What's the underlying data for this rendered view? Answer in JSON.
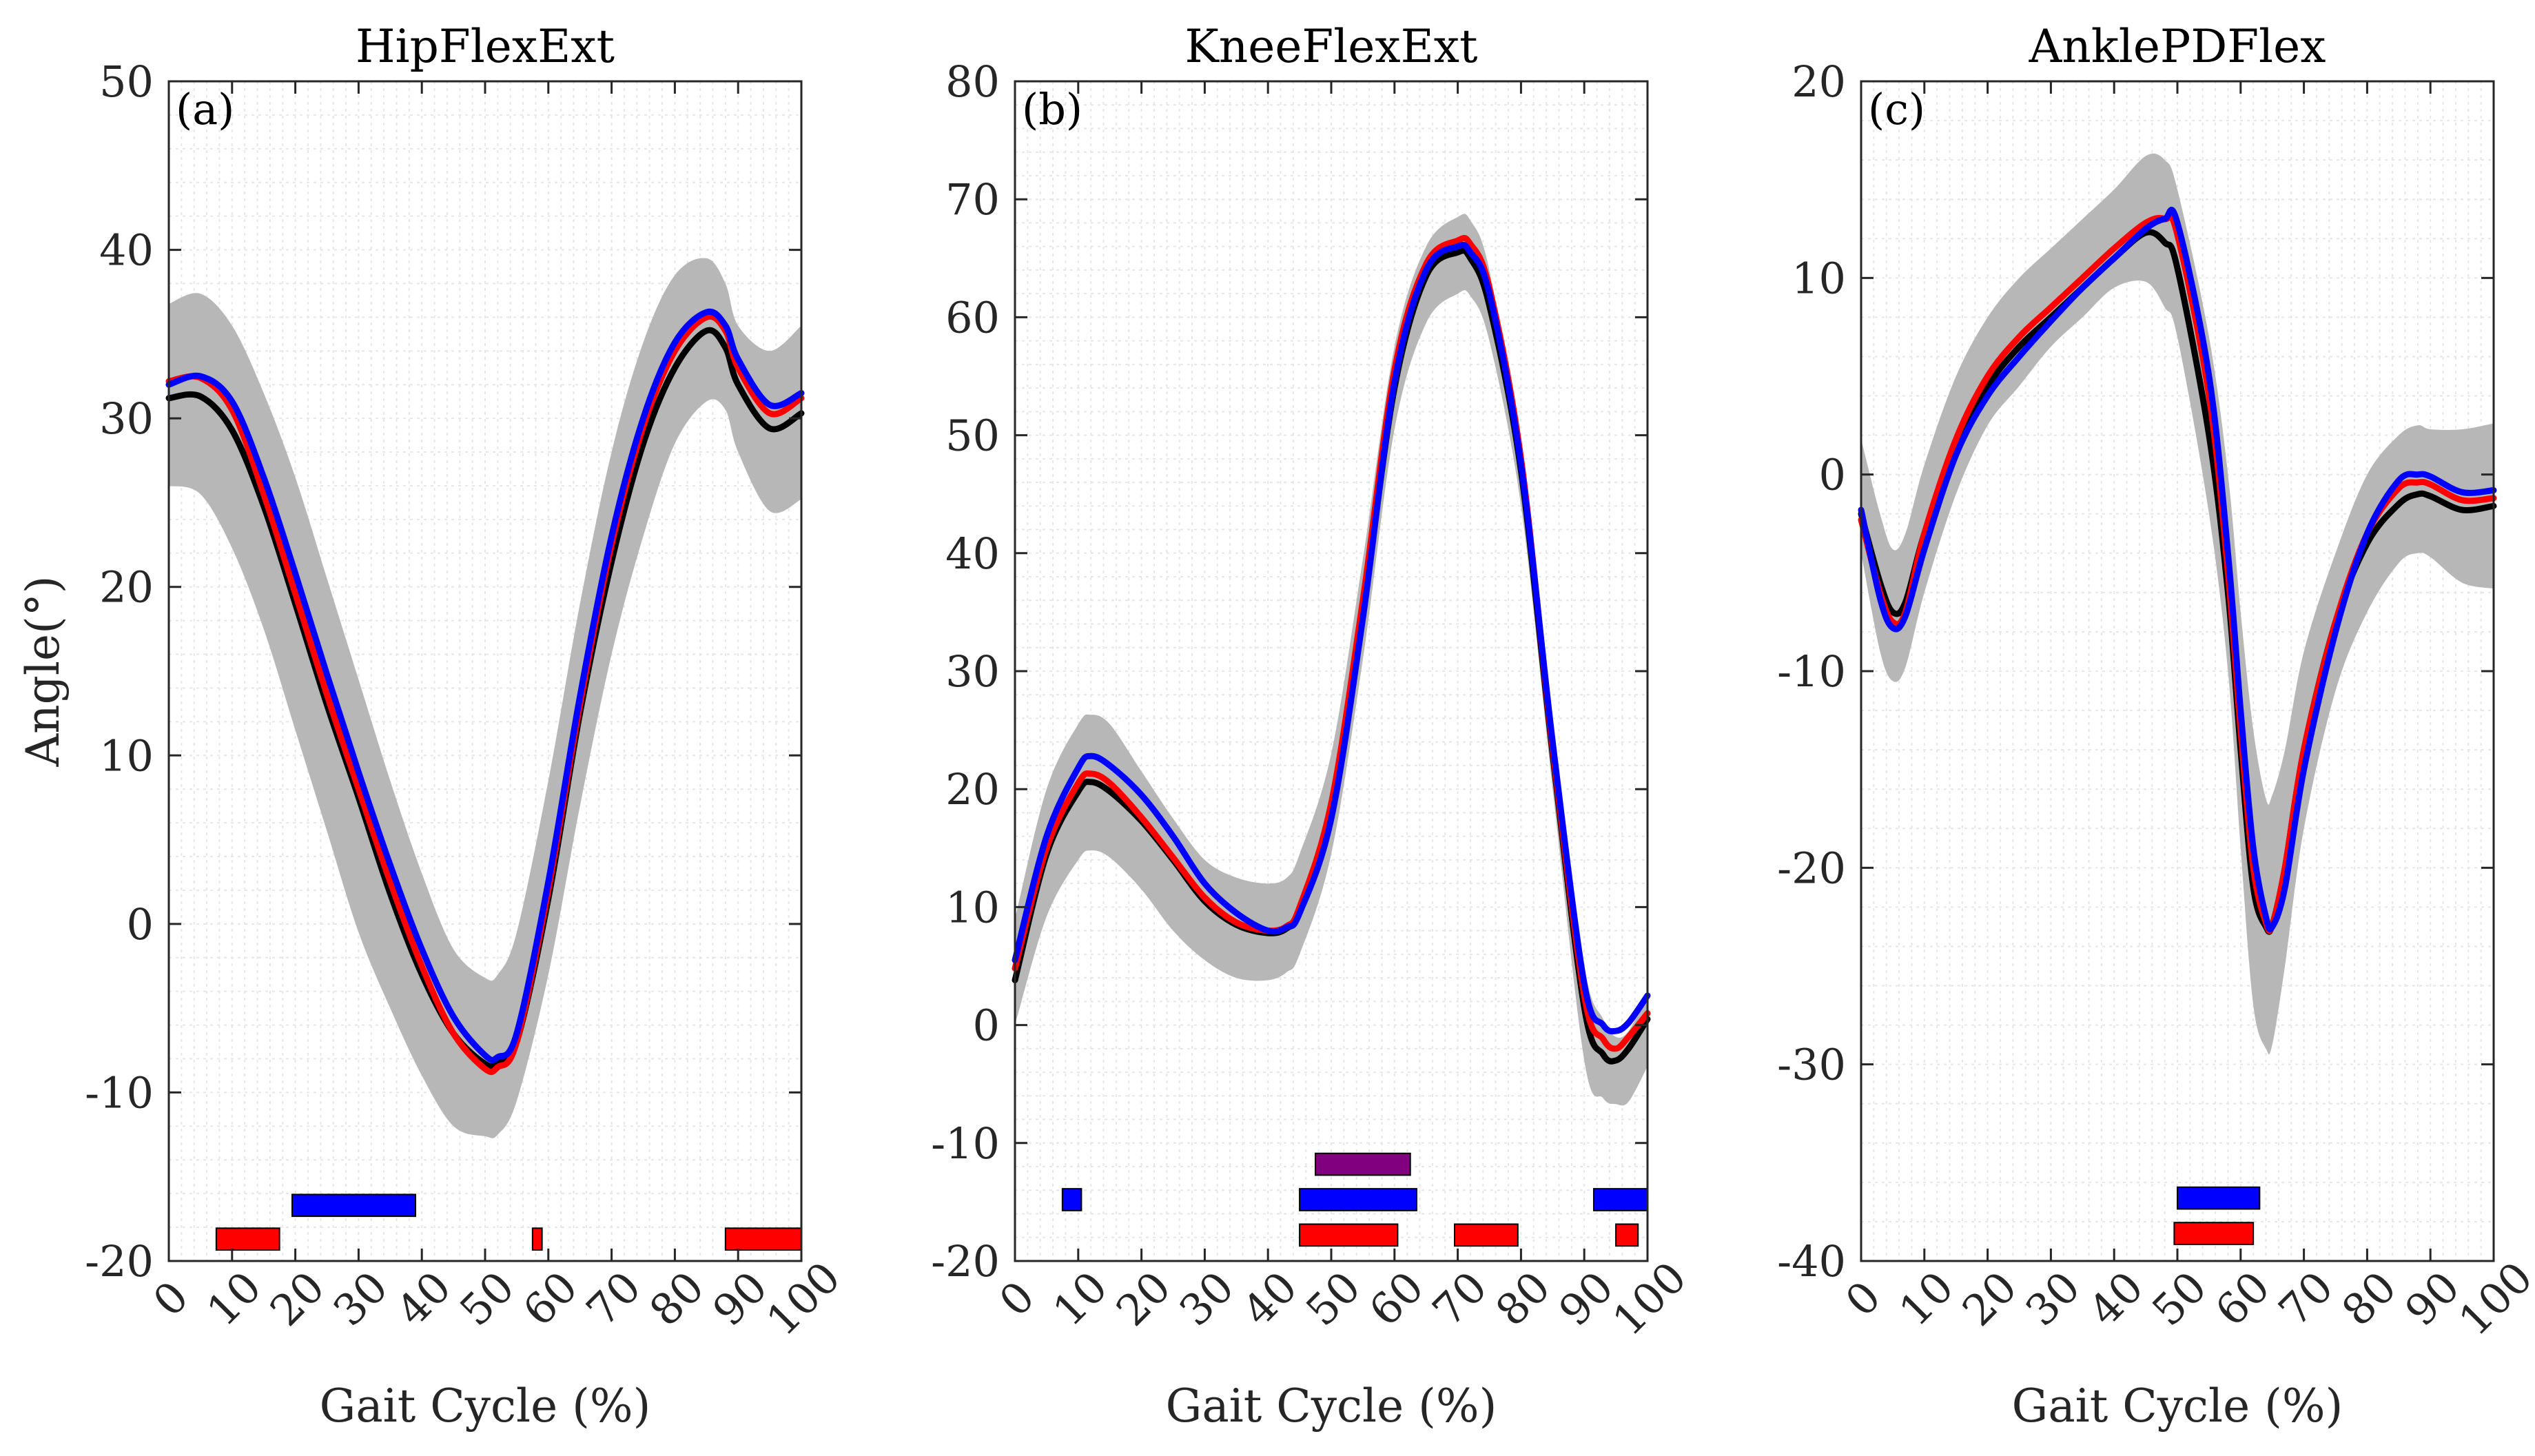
{
  "chart_data": [
    {
      "type": "line",
      "panel_label": "(a)",
      "title": "HipFlexExt",
      "xlabel": "Gait Cycle (%)",
      "ylabel": "Angle(°)",
      "xlim": [
        0,
        100
      ],
      "ylim": [
        -20,
        50
      ],
      "xticks": [
        0,
        10,
        20,
        30,
        40,
        50,
        60,
        70,
        80,
        90,
        100
      ],
      "yticks": [
        -20,
        -10,
        0,
        10,
        20,
        30,
        40,
        50
      ],
      "x": [
        0,
        5,
        10,
        15,
        20,
        25,
        30,
        35,
        40,
        45,
        50,
        52,
        55,
        60,
        65,
        70,
        75,
        80,
        85,
        88,
        90,
        95,
        100
      ],
      "band": {
        "name": "normative range",
        "color": "#b7b7b7",
        "upper": [
          36.8,
          37.4,
          35.5,
          31.5,
          26.5,
          20.5,
          14.5,
          8.5,
          3,
          -1.5,
          -3.2,
          -3,
          -0.5,
          8.5,
          19,
          28,
          34.5,
          38.5,
          39.5,
          38,
          35.5,
          34,
          35.5
        ],
        "lower": [
          26,
          25.5,
          22.3,
          17.5,
          11.5,
          5.5,
          -0.5,
          -5,
          -9,
          -12,
          -12.6,
          -12.5,
          -10.5,
          -3,
          7,
          16,
          23,
          28.5,
          31,
          30.5,
          28,
          24.5,
          25.2
        ]
      },
      "series": [
        {
          "name": "black",
          "color": "#000000",
          "values": [
            31.2,
            31.3,
            29.3,
            24.8,
            19,
            13,
            7.5,
            1.8,
            -3,
            -6.5,
            -8.3,
            -8.2,
            -7,
            1.5,
            12.5,
            21.5,
            28.5,
            33,
            35.2,
            34.2,
            32,
            29.4,
            30.3
          ]
        },
        {
          "name": "red",
          "color": "#ff0000",
          "values": [
            32.2,
            32.4,
            30.5,
            25.5,
            19.6,
            13.6,
            8,
            2.5,
            -2.5,
            -6.5,
            -8.6,
            -8.5,
            -7,
            2,
            13,
            22.5,
            29.5,
            34,
            36,
            35.2,
            33,
            30.3,
            31.2
          ]
        },
        {
          "name": "blue",
          "color": "#0000ff",
          "values": [
            32,
            32.5,
            31,
            26.5,
            20.8,
            14.8,
            9,
            3.5,
            -1.5,
            -5.5,
            -7.8,
            -7.9,
            -6.5,
            2.5,
            13.5,
            23,
            30,
            34.5,
            36.3,
            35.5,
            33.5,
            30.8,
            31.5
          ]
        }
      ],
      "significance_bars": [
        {
          "color": "#0000ff",
          "level": -16.7,
          "start": 19.5,
          "end": 39
        },
        {
          "color": "#ff0000",
          "level": -18.7,
          "start": 7.5,
          "end": 17.5
        },
        {
          "color": "#ff0000",
          "level": -18.7,
          "start": 57.5,
          "end": 59
        },
        {
          "color": "#ff0000",
          "level": -18.7,
          "start": 88,
          "end": 100
        }
      ]
    },
    {
      "type": "line",
      "panel_label": "(b)",
      "title": "KneeFlexExt",
      "xlabel": "Gait Cycle (%)",
      "ylabel": "",
      "xlim": [
        0,
        100
      ],
      "ylim": [
        -20,
        80
      ],
      "xticks": [
        0,
        10,
        20,
        30,
        40,
        50,
        60,
        70,
        80,
        90,
        100
      ],
      "yticks": [
        -20,
        -10,
        0,
        10,
        20,
        30,
        40,
        50,
        60,
        70,
        80
      ],
      "x": [
        0,
        5,
        10,
        12,
        15,
        20,
        25,
        30,
        35,
        40,
        43,
        45,
        50,
        55,
        60,
        65,
        70,
        72,
        75,
        80,
        85,
        90,
        93,
        95,
        97,
        100
      ],
      "band": {
        "name": "normative range",
        "color": "#b7b7b7",
        "upper": [
          9,
          20,
          25.5,
          26.3,
          25.5,
          21.5,
          17.5,
          14,
          12.5,
          12,
          12.5,
          14.5,
          23,
          39.5,
          57.5,
          66,
          68.5,
          68.2,
          64,
          48,
          25,
          5,
          0.5,
          -1,
          -0.5,
          2.5
        ],
        "lower": [
          0,
          9.2,
          14,
          14.8,
          14.2,
          11.5,
          8,
          5.5,
          4,
          3.8,
          4.5,
          6,
          14.5,
          31,
          50.5,
          59.5,
          62,
          61.8,
          58,
          44,
          20,
          -3,
          -6.2,
          -6.7,
          -6.5,
          -3.5
        ]
      },
      "series": [
        {
          "name": "black",
          "color": "#000000",
          "values": [
            3.8,
            14.5,
            19.8,
            20.6,
            19.8,
            17.3,
            14,
            10.5,
            8.5,
            7.8,
            8.2,
            9.8,
            18.5,
            35,
            54,
            63.5,
            65.5,
            65,
            61,
            47,
            23,
            1.5,
            -2.5,
            -3,
            -2,
            0.5
          ]
        },
        {
          "name": "red",
          "color": "#ff0000",
          "values": [
            4.8,
            15,
            20.5,
            21.3,
            20.5,
            17.6,
            14.2,
            10.8,
            8.7,
            8,
            8.4,
            10,
            18.8,
            36,
            55.5,
            64.5,
            66.5,
            66.2,
            62.5,
            48,
            23.5,
            2.5,
            -1.2,
            -2,
            -1,
            1
          ]
        },
        {
          "name": "blue",
          "color": "#0000ff",
          "values": [
            5.5,
            16,
            21.8,
            22.8,
            22,
            19.5,
            16,
            12,
            9.5,
            8,
            8.3,
            9.5,
            17.5,
            34.5,
            54.5,
            64,
            66,
            65.5,
            62,
            47.5,
            24,
            3.5,
            0,
            -0.5,
            0.2,
            2.5
          ]
        }
      ],
      "significance_bars": [
        {
          "color": "#800080",
          "level": -11.8,
          "start": 47.5,
          "end": 62.5
        },
        {
          "color": "#0000ff",
          "level": -14.8,
          "start": 7.5,
          "end": 10.5
        },
        {
          "color": "#0000ff",
          "level": -14.8,
          "start": 45,
          "end": 63.5
        },
        {
          "color": "#0000ff",
          "level": -14.8,
          "start": 91.5,
          "end": 100
        },
        {
          "color": "#ff0000",
          "level": -17.8,
          "start": 45,
          "end": 60.5
        },
        {
          "color": "#ff0000",
          "level": -17.8,
          "start": 69.5,
          "end": 79.5
        },
        {
          "color": "#ff0000",
          "level": -17.8,
          "start": 95,
          "end": 98.5
        }
      ]
    },
    {
      "type": "line",
      "panel_label": "(c)",
      "title": "AnklePDFlex",
      "xlabel": "Gait Cycle (%)",
      "ylabel": "",
      "xlim": [
        0,
        100
      ],
      "ylim": [
        -40,
        20
      ],
      "xticks": [
        0,
        10,
        20,
        30,
        40,
        50,
        60,
        70,
        80,
        90,
        100
      ],
      "yticks": [
        -40,
        -30,
        -20,
        -10,
        0,
        10,
        20
      ],
      "x": [
        0,
        3,
        5,
        7,
        10,
        15,
        20,
        25,
        30,
        35,
        40,
        45,
        48,
        50,
        55,
        58,
        60,
        62,
        64,
        65,
        67,
        70,
        75,
        80,
        85,
        88,
        90,
        95,
        100
      ],
      "band": {
        "name": "normative range",
        "color": "#b7b7b7",
        "upper": [
          1.8,
          -2,
          -3.8,
          -3,
          0.5,
          5,
          8,
          10,
          11.5,
          13,
          14.5,
          16.2,
          16,
          14.5,
          7,
          0,
          -7,
          -13,
          -16.5,
          -16.3,
          -14,
          -9,
          -4,
          0,
          2,
          2.5,
          2.3,
          2.3,
          2.6
        ],
        "lower": [
          -4,
          -9,
          -10.5,
          -9.8,
          -6,
          -1,
          2.5,
          4.5,
          6.5,
          8,
          9.5,
          9.8,
          8.5,
          7,
          -2,
          -10,
          -19,
          -27,
          -29.2,
          -29,
          -25,
          -18,
          -11,
          -7,
          -4.5,
          -4,
          -4.2,
          -5.5,
          -5.8
        ]
      },
      "series": [
        {
          "name": "black",
          "color": "#000000",
          "values": [
            -2,
            -5.5,
            -7,
            -6.5,
            -3,
            1.5,
            4.5,
            6.5,
            8,
            9.5,
            11,
            12.3,
            11.8,
            10.5,
            2,
            -6,
            -14,
            -21,
            -23,
            -22.9,
            -20,
            -14,
            -7.5,
            -3.5,
            -1.5,
            -1,
            -1.1,
            -1.8,
            -1.6
          ]
        },
        {
          "name": "red",
          "color": "#ff0000",
          "values": [
            -2.3,
            -6,
            -7.5,
            -7,
            -3,
            1.8,
            5,
            7,
            8.5,
            10,
            11.5,
            12.8,
            13,
            12.2,
            4,
            -5,
            -13,
            -20,
            -22.8,
            -22.9,
            -20,
            -14,
            -7.5,
            -3,
            -0.7,
            -0.4,
            -0.5,
            -1.3,
            -1.2
          ]
        },
        {
          "name": "blue",
          "color": "#0000ff",
          "values": [
            -1.8,
            -6.3,
            -7.8,
            -7.2,
            -3.8,
            1,
            4,
            6,
            7.8,
            9.5,
            11,
            12.5,
            13,
            12.8,
            5,
            -4,
            -12,
            -19,
            -22.5,
            -23,
            -21,
            -15,
            -8,
            -3,
            -0.3,
            0,
            -0.1,
            -0.9,
            -0.8
          ]
        }
      ],
      "significance_bars": [
        {
          "color": "#0000ff",
          "level": -36.8,
          "start": 50,
          "end": 63
        },
        {
          "color": "#ff0000",
          "level": -38.6,
          "start": 49.5,
          "end": 62
        }
      ]
    }
  ]
}
